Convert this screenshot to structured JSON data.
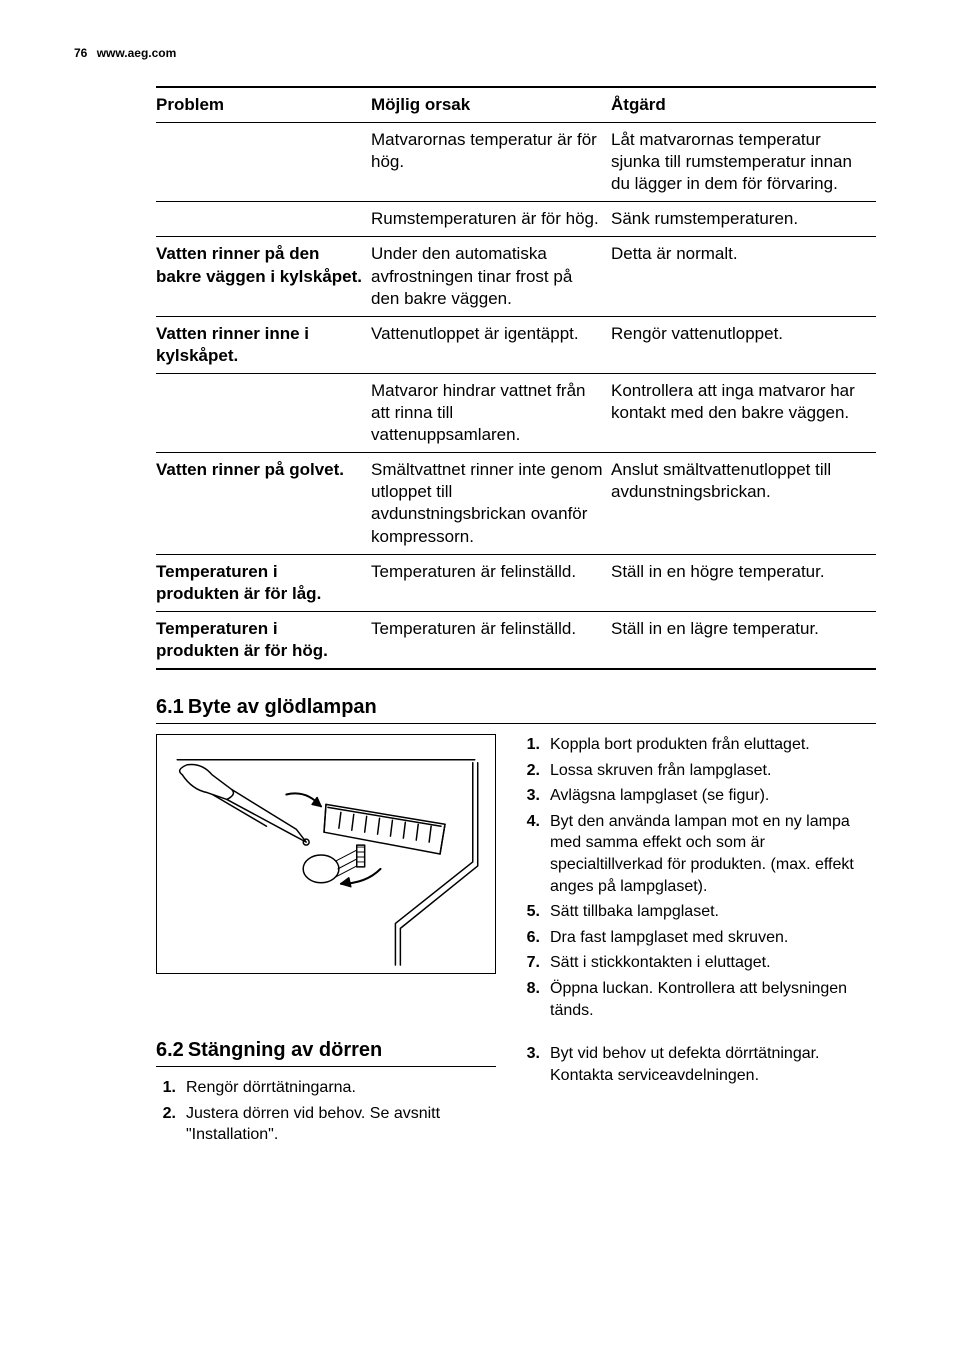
{
  "header": {
    "page_num": "76",
    "url": "www.aeg.com"
  },
  "table": {
    "headers": [
      "Problem",
      "Möjlig orsak",
      "Åtgärd"
    ],
    "rows": [
      [
        "",
        "Matvarornas temperatur är för hög.",
        "Låt matvarornas temperatur sjunka till rumstemperatur innan du lägger in dem för förvaring."
      ],
      [
        "",
        "Rumstemperaturen är för hög.",
        "Sänk rumstemperaturen."
      ],
      [
        "Vatten rinner på den bakre väggen i kylskåpet.",
        "Under den automatiska avfrostningen tinar frost på den bakre väggen.",
        "Detta är normalt."
      ],
      [
        "Vatten rinner inne i kylskåpet.",
        "Vattenutloppet är igentäppt.",
        "Rengör vattenutloppet."
      ],
      [
        "",
        "Matvaror hindrar vattnet från att rinna till vattenuppsamlaren.",
        "Kontrollera att inga matvaror har kontakt med den bakre väggen."
      ],
      [
        "Vatten rinner på golvet.",
        "Smältvattnet rinner inte genom utloppet till avdunstningsbrickan ovanför kompressorn.",
        "Anslut smältvattenutloppet till avdunstningsbrickan."
      ],
      [
        "Temperaturen i produkten är för låg.",
        "Temperaturen är felinställd.",
        "Ställ in en högre temperatur."
      ],
      [
        "Temperaturen i produkten är för hög.",
        "Temperaturen är felinställd.",
        "Ställ in en lägre temperatur."
      ]
    ]
  },
  "section61": {
    "num": "6.1",
    "title": "Byte av glödlampan",
    "steps": [
      "Koppla bort produkten från eluttaget.",
      "Lossa skruven från lampglaset.",
      "Avlägsna lampglaset (se figur).",
      "Byt den använda lampan mot en ny lampa med samma effekt och som är specialtillverkad för produkten. (max. effekt anges på lampglaset).",
      "Sätt tillbaka lampglaset.",
      "Dra fast lampglaset med skruven.",
      "Sätt i stickkontakten i eluttaget.",
      "Öppna luckan. Kontrollera att belysningen tänds."
    ]
  },
  "section62": {
    "num": "6.2",
    "title": "Stängning av dörren",
    "left_steps": [
      "Rengör dörrtätningarna.",
      "Justera dörren vid behov. Se avsnitt \"Installation\"."
    ],
    "right_step_num": "3.",
    "right_step": "Byt vid behov ut defekta dörrtätningar. Kontakta serviceavdelningen."
  }
}
